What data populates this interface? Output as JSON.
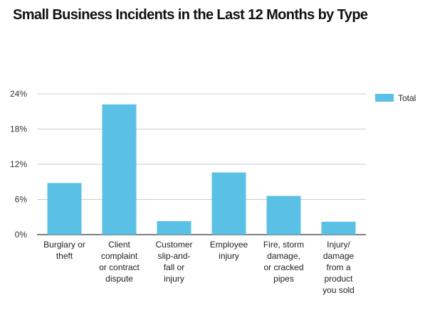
{
  "chart_data": {
    "type": "bar",
    "title": "Small Business Incidents in the Last 12 Months by Type",
    "xlabel": "",
    "ylabel": "",
    "categories": [
      [
        "Burglary or",
        "theft"
      ],
      [
        "Client",
        "complaint",
        "or contract",
        "dispute"
      ],
      [
        "Customer",
        "slip-and-",
        "fall or",
        "injury"
      ],
      [
        "Employee",
        "injury"
      ],
      [
        "Fire, storm",
        "damage,",
        "or cracked",
        "pipes"
      ],
      [
        "Injury/",
        "damage",
        "from a",
        "product",
        "you sold"
      ]
    ],
    "series": [
      {
        "name": "Total",
        "values": [
          8.8,
          22.2,
          2.3,
          10.6,
          6.6,
          2.2
        ]
      }
    ],
    "ylim": [
      0,
      24
    ],
    "yticks": [
      0,
      6,
      12,
      18,
      24
    ],
    "ytick_suffix": "%",
    "grid": true,
    "legend": "top-right",
    "colors": {
      "bar": "#5bc0e6",
      "grid": "#cccccc",
      "axis": "#333333"
    }
  }
}
